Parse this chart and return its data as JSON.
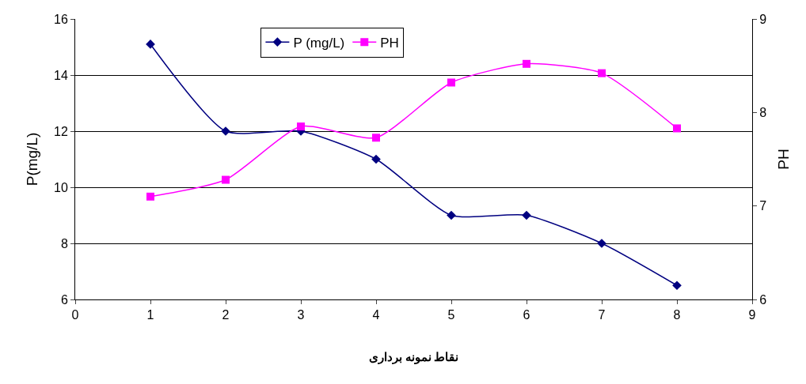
{
  "chart_data": {
    "type": "line",
    "xlabel": "نقاط نمونه برداری",
    "ylabel": "P(mg/L)",
    "y2label": "PH",
    "x": [
      1,
      2,
      3,
      4,
      5,
      6,
      7,
      8
    ],
    "series": [
      {
        "name": "P (mg/L)",
        "color": "#000080",
        "marker": "diamond",
        "values": [
          15.1,
          12,
          12,
          11,
          9,
          9,
          8,
          6.5
        ]
      },
      {
        "name": "PH",
        "color": "#ff00ff",
        "marker": "square",
        "axis": "y2",
        "values": [
          7.1,
          7.28,
          7.85,
          7.73,
          8.32,
          8.52,
          8.42,
          7.83
        ]
      }
    ],
    "xlim": [
      0,
      9
    ],
    "xticks": [
      0,
      1,
      2,
      3,
      4,
      5,
      6,
      7,
      8,
      9
    ],
    "ylim": [
      6,
      16
    ],
    "yticks": [
      6,
      8,
      10,
      12,
      14,
      16
    ],
    "y2lim": [
      6,
      9
    ],
    "y2ticks": [
      6,
      7,
      8,
      9
    ],
    "grid": "y",
    "legend": "top",
    "line_style": "solid"
  }
}
